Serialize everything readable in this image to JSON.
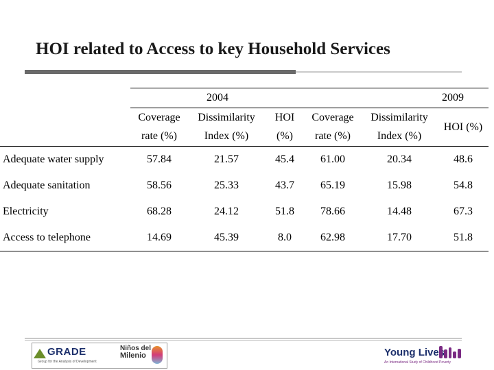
{
  "title": "HOI related to Access to key Household Services",
  "table": {
    "years": [
      "2004",
      "2009"
    ],
    "headers": {
      "coverage_top": "Coverage",
      "coverage_bottom": "rate (%)",
      "dissim_top": "Dissimilarity",
      "dissim_bottom": "Index (%)",
      "hoi_top": "HOI",
      "hoi_bottom": "(%)",
      "hoi_2009": "HOI (%)"
    },
    "rows": [
      {
        "label": "Adequate water supply",
        "values": [
          "57.84",
          "21.57",
          "45.4",
          "61.00",
          "20.34",
          "48.6"
        ]
      },
      {
        "label": "Adequate sanitation",
        "values": [
          "58.56",
          "25.33",
          "43.7",
          "65.19",
          "15.98",
          "54.8"
        ]
      },
      {
        "label": "Electricity",
        "values": [
          "68.28",
          "24.12",
          "51.8",
          "78.66",
          "14.48",
          "67.3"
        ]
      },
      {
        "label": "Access to telephone",
        "values": [
          "14.69",
          "45.39",
          "8.0",
          "62.98",
          "17.70",
          "51.8"
        ]
      }
    ]
  },
  "footer": {
    "grade_logo": "GRADE",
    "grade_sub": "Group for the Analysis of Development",
    "ninos_line1": "Niños del",
    "ninos_line2": "Milenio",
    "young_lives": "Young Lives",
    "young_lives_sub": "An International Study of Childhood Poverty"
  }
}
